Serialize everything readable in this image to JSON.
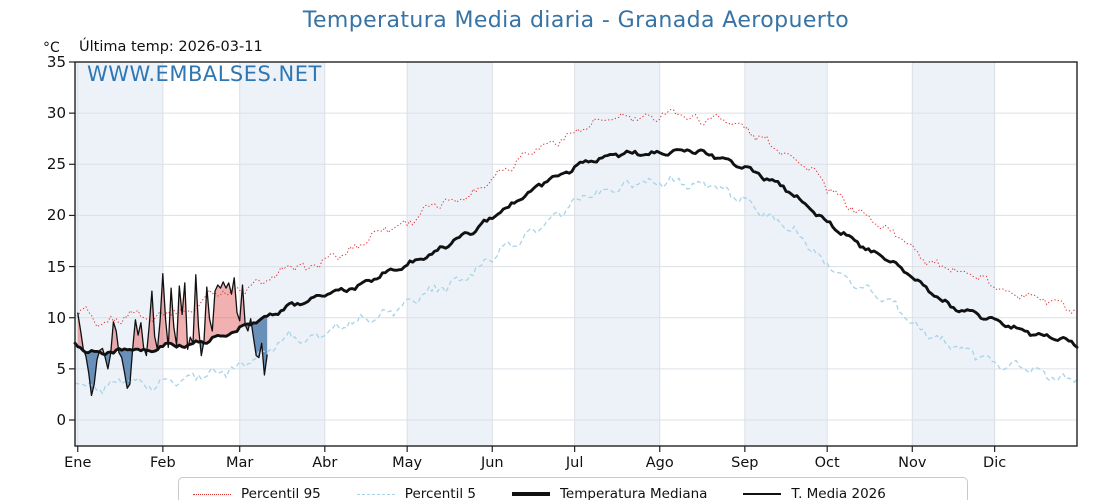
{
  "header": {
    "title": "Temperatura Media diaria - Granada Aeropuerto",
    "y_unit": "°C",
    "last_temp_label": "Última temp: 2026-03-11",
    "watermark": "WWW.EMBALSES.NET"
  },
  "colors": {
    "title_blue": "#3773a5",
    "watermark_blue": "#2e77b4",
    "p95_red": "#e03535",
    "p5_blue": "#a8d3e8",
    "median_black": "#111111",
    "band_shade": "#edf2f9",
    "grid": "#dce0e6",
    "fill_above": "rgba(224,70,70,0.42)",
    "fill_below": "rgba(52,105,160,0.72)"
  },
  "chart_data": {
    "type": "line",
    "title": "Temperatura Media diaria - Granada Aeropuerto",
    "xlabel": "",
    "ylabel": "°C",
    "ylim": [
      -2.5,
      35
    ],
    "xlim_days": [
      0,
      365
    ],
    "grid": true,
    "yticks": [
      0,
      5,
      10,
      15,
      20,
      25,
      30,
      35
    ],
    "months": {
      "labels": [
        "Ene",
        "Feb",
        "Mar",
        "Abr",
        "May",
        "Jun",
        "Jul",
        "Ago",
        "Sep",
        "Oct",
        "Nov",
        "Dic"
      ],
      "start_days": [
        1,
        32,
        60,
        91,
        121,
        152,
        182,
        213,
        244,
        274,
        305,
        335
      ],
      "shaded_month_indexes": [
        0,
        2,
        4,
        6,
        8,
        10
      ]
    },
    "legend": {
      "position": "bottom",
      "entries": [
        "Percentil 95",
        "Percentil 5",
        "Temperatura Mediana",
        "T. Media 2026"
      ]
    },
    "series": [
      {
        "name": "Percentil 95",
        "style": "dotted",
        "color": "#e03535",
        "width": 1.0,
        "jitter": 0.75,
        "anchors": [
          [
            0,
            10.2
          ],
          [
            4,
            10.6
          ],
          [
            8,
            9.3
          ],
          [
            12,
            9.7
          ],
          [
            16,
            9.9
          ],
          [
            20,
            10.4
          ],
          [
            24,
            10.1
          ],
          [
            28,
            9.8
          ],
          [
            31,
            10.2
          ],
          [
            35,
            10.9
          ],
          [
            40,
            10.6
          ],
          [
            45,
            11.2
          ],
          [
            49,
            12.3
          ],
          [
            52,
            12.5
          ],
          [
            56,
            12.2
          ],
          [
            59,
            12.7
          ],
          [
            63,
            13.0
          ],
          [
            67,
            13.5
          ],
          [
            72,
            14.0
          ],
          [
            78,
            14.9
          ],
          [
            84,
            14.6
          ],
          [
            91,
            15.8
          ],
          [
            97,
            16.3
          ],
          [
            103,
            16.8
          ],
          [
            108,
            17.9
          ],
          [
            113,
            18.7
          ],
          [
            117,
            19.0
          ],
          [
            121,
            19.4
          ],
          [
            126,
            20.3
          ],
          [
            131,
            20.9
          ],
          [
            135,
            21.1
          ],
          [
            140,
            21.6
          ],
          [
            145,
            22.2
          ],
          [
            152,
            23.9
          ],
          [
            158,
            24.6
          ],
          [
            163,
            25.6
          ],
          [
            168,
            26.6
          ],
          [
            173,
            27.1
          ],
          [
            178,
            27.7
          ],
          [
            182,
            28.2
          ],
          [
            187,
            28.6
          ],
          [
            192,
            29.1
          ],
          [
            197,
            29.5
          ],
          [
            202,
            29.9
          ],
          [
            207,
            29.4
          ],
          [
            213,
            29.7
          ],
          [
            218,
            30.0
          ],
          [
            223,
            29.6
          ],
          [
            228,
            29.4
          ],
          [
            233,
            29.8
          ],
          [
            238,
            29.2
          ],
          [
            244,
            28.3
          ],
          [
            249,
            27.6
          ],
          [
            254,
            27.0
          ],
          [
            259,
            26.3
          ],
          [
            264,
            25.2
          ],
          [
            269,
            24.2
          ],
          [
            274,
            22.6
          ],
          [
            279,
            21.6
          ],
          [
            284,
            20.8
          ],
          [
            289,
            19.9
          ],
          [
            294,
            18.8
          ],
          [
            299,
            18.0
          ],
          [
            305,
            16.9
          ],
          [
            310,
            15.8
          ],
          [
            315,
            15.1
          ],
          [
            319,
            14.7
          ],
          [
            323,
            14.4
          ],
          [
            327,
            14.1
          ],
          [
            331,
            13.6
          ],
          [
            335,
            13.1
          ],
          [
            340,
            12.7
          ],
          [
            345,
            12.3
          ],
          [
            350,
            11.9
          ],
          [
            355,
            11.5
          ],
          [
            360,
            11.2
          ],
          [
            365,
            10.6
          ]
        ]
      },
      {
        "name": "Percentil 5",
        "style": "dashed",
        "color": "#a8d3e8",
        "width": 1.3,
        "jitter": 0.8,
        "anchors": [
          [
            0,
            4.2
          ],
          [
            4,
            3.4
          ],
          [
            8,
            2.9
          ],
          [
            12,
            3.4
          ],
          [
            16,
            3.6
          ],
          [
            20,
            3.9
          ],
          [
            24,
            3.6
          ],
          [
            28,
            3.4
          ],
          [
            31,
            3.7
          ],
          [
            35,
            4.0
          ],
          [
            40,
            3.8
          ],
          [
            45,
            4.2
          ],
          [
            50,
            4.6
          ],
          [
            55,
            4.9
          ],
          [
            59,
            5.3
          ],
          [
            63,
            5.8
          ],
          [
            67,
            6.3
          ],
          [
            72,
            6.9
          ],
          [
            78,
            8.3
          ],
          [
            84,
            7.9
          ],
          [
            91,
            8.6
          ],
          [
            97,
            9.1
          ],
          [
            103,
            9.6
          ],
          [
            108,
            10.1
          ],
          [
            113,
            10.6
          ],
          [
            117,
            10.9
          ],
          [
            121,
            11.3
          ],
          [
            126,
            12.0
          ],
          [
            131,
            12.6
          ],
          [
            135,
            13.1
          ],
          [
            140,
            13.8
          ],
          [
            145,
            14.4
          ],
          [
            152,
            15.9
          ],
          [
            158,
            16.9
          ],
          [
            163,
            17.8
          ],
          [
            168,
            18.8
          ],
          [
            173,
            19.5
          ],
          [
            178,
            20.2
          ],
          [
            182,
            21.2
          ],
          [
            187,
            21.9
          ],
          [
            192,
            22.4
          ],
          [
            197,
            22.7
          ],
          [
            202,
            22.9
          ],
          [
            207,
            23.0
          ],
          [
            213,
            23.2
          ],
          [
            218,
            23.5
          ],
          [
            223,
            23.3
          ],
          [
            228,
            23.0
          ],
          [
            233,
            22.7
          ],
          [
            238,
            22.2
          ],
          [
            244,
            21.4
          ],
          [
            249,
            20.6
          ],
          [
            254,
            19.8
          ],
          [
            259,
            18.8
          ],
          [
            264,
            17.8
          ],
          [
            269,
            16.5
          ],
          [
            274,
            15.3
          ],
          [
            279,
            14.2
          ],
          [
            284,
            13.3
          ],
          [
            289,
            12.5
          ],
          [
            294,
            11.9
          ],
          [
            299,
            11.2
          ],
          [
            305,
            9.5
          ],
          [
            310,
            8.6
          ],
          [
            315,
            7.7
          ],
          [
            319,
            7.2
          ],
          [
            323,
            6.9
          ],
          [
            327,
            6.7
          ],
          [
            331,
            6.2
          ],
          [
            335,
            5.7
          ],
          [
            340,
            5.3
          ],
          [
            345,
            5.0
          ],
          [
            350,
            4.7
          ],
          [
            355,
            4.4
          ],
          [
            360,
            4.2
          ],
          [
            365,
            4.0
          ]
        ]
      },
      {
        "name": "Temperatura Mediana",
        "style": "solid",
        "color": "#111111",
        "width": 2.9,
        "jitter": 0.4,
        "anchors": [
          [
            0,
            7.4
          ],
          [
            3,
            6.9
          ],
          [
            6,
            6.6
          ],
          [
            10,
            6.4
          ],
          [
            14,
            6.7
          ],
          [
            18,
            6.9
          ],
          [
            22,
            7.0
          ],
          [
            26,
            6.6
          ],
          [
            31,
            7.1
          ],
          [
            35,
            7.3
          ],
          [
            40,
            7.2
          ],
          [
            45,
            7.6
          ],
          [
            50,
            8.0
          ],
          [
            55,
            8.3
          ],
          [
            59,
            8.7
          ],
          [
            63,
            9.2
          ],
          [
            67,
            9.8
          ],
          [
            72,
            10.4
          ],
          [
            78,
            11.2
          ],
          [
            84,
            11.6
          ],
          [
            91,
            12.2
          ],
          [
            97,
            12.6
          ],
          [
            103,
            13.1
          ],
          [
            108,
            13.8
          ],
          [
            113,
            14.3
          ],
          [
            117,
            14.6
          ],
          [
            121,
            15.1
          ],
          [
            126,
            15.8
          ],
          [
            131,
            16.5
          ],
          [
            135,
            17.1
          ],
          [
            140,
            17.8
          ],
          [
            145,
            18.4
          ],
          [
            152,
            19.8
          ],
          [
            158,
            20.9
          ],
          [
            163,
            21.8
          ],
          [
            168,
            22.7
          ],
          [
            173,
            23.4
          ],
          [
            178,
            24.1
          ],
          [
            182,
            24.8
          ],
          [
            187,
            25.3
          ],
          [
            192,
            25.7
          ],
          [
            197,
            25.9
          ],
          [
            202,
            26.0
          ],
          [
            207,
            26.1
          ],
          [
            213,
            26.2
          ],
          [
            218,
            26.3
          ],
          [
            223,
            26.3
          ],
          [
            228,
            26.1
          ],
          [
            233,
            25.8
          ],
          [
            238,
            25.4
          ],
          [
            244,
            24.8
          ],
          [
            249,
            24.0
          ],
          [
            254,
            23.2
          ],
          [
            259,
            22.6
          ],
          [
            264,
            21.6
          ],
          [
            269,
            20.5
          ],
          [
            274,
            19.4
          ],
          [
            279,
            18.3
          ],
          [
            284,
            17.5
          ],
          [
            289,
            16.6
          ],
          [
            294,
            16.0
          ],
          [
            299,
            15.2
          ],
          [
            305,
            13.9
          ],
          [
            310,
            12.8
          ],
          [
            315,
            11.8
          ],
          [
            319,
            11.2
          ],
          [
            323,
            10.8
          ],
          [
            327,
            10.5
          ],
          [
            331,
            10.1
          ],
          [
            335,
            9.7
          ],
          [
            340,
            9.2
          ],
          [
            345,
            8.8
          ],
          [
            350,
            8.5
          ],
          [
            355,
            8.2
          ],
          [
            360,
            7.8
          ],
          [
            365,
            7.2
          ]
        ]
      },
      {
        "name": "T. Media 2026",
        "style": "solid",
        "color": "#111111",
        "width": 1.3,
        "jitter": 0,
        "daily": {
          "start_day": 1,
          "end_date": "2026-03-11",
          "values": [
            10.5,
            8.8,
            7.0,
            6.2,
            4.6,
            2.4,
            3.5,
            5.9,
            6.8,
            7.0,
            6.1,
            5.0,
            6.5,
            9.6,
            8.7,
            6.6,
            6.1,
            4.7,
            3.1,
            3.5,
            6.9,
            9.8,
            8.3,
            9.5,
            7.1,
            6.3,
            9.1,
            12.6,
            8.2,
            6.9,
            9.7,
            14.3,
            9.8,
            7.1,
            12.9,
            9.1,
            7.3,
            13.1,
            10.3,
            13.4,
            6.9,
            8.1,
            7.5,
            14.2,
            9.1,
            6.3,
            7.7,
            13.0,
            9.9,
            8.7,
            12.6,
            13.2,
            12.9,
            13.5,
            12.9,
            13.4,
            12.3,
            13.9,
            10.5,
            9.7,
            13.2,
            9.3,
            8.7,
            9.9,
            8.1,
            6.3,
            6.1,
            7.5,
            4.4,
            6.4
          ]
        }
      }
    ],
    "fills": {
      "between": [
        "T. Media 2026",
        "Temperatura Mediana"
      ],
      "above_color": "rgba(224,70,70,0.42)",
      "below_color": "rgba(52,105,160,0.72)"
    }
  }
}
